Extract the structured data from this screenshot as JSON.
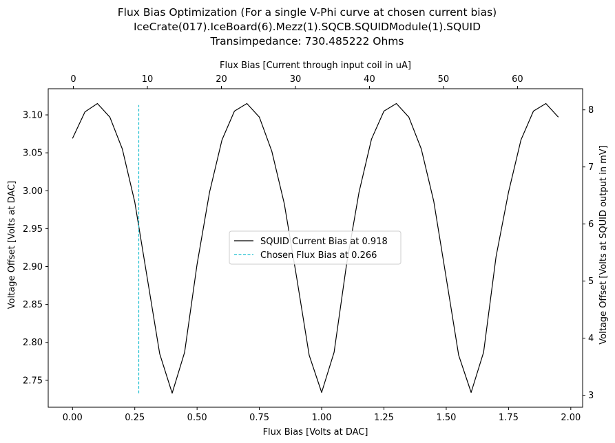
{
  "chart_data": {
    "type": "line",
    "title_lines": [
      "Flux Bias Optimization (For a single V-Phi curve at chosen current bias)",
      "IceCrate(017).IceBoard(6).Mezz(1).SQCB.SQUIDModule(1).SQUID",
      "Transimpedance: 730.485222 Ohms"
    ],
    "xlabel_bottom": "Flux Bias [Volts at DAC]",
    "xlabel_top": "Flux Bias [Current through input coil in uA]",
    "ylabel_left": "Voltage Offset [Volts at DAC]",
    "ylabel_right": "Voltage Offset [Volts at SQUID output in mV]",
    "xlim": [
      -0.0975,
      2.0475
    ],
    "ylim": [
      2.7145,
      3.1345
    ],
    "xlim_top": [
      -3.4,
      68.8
    ],
    "ylim_right": [
      2.79,
      8.37
    ],
    "xticks_bottom": [
      0.0,
      0.25,
      0.5,
      0.75,
      1.0,
      1.25,
      1.5,
      1.75,
      2.0
    ],
    "xticklabels_bottom": [
      "0.00",
      "0.25",
      "0.50",
      "0.75",
      "1.00",
      "1.25",
      "1.50",
      "1.75",
      "2.00"
    ],
    "xticks_top": [
      0,
      10,
      20,
      30,
      40,
      50,
      60
    ],
    "xticklabels_top": [
      "0",
      "10",
      "20",
      "30",
      "40",
      "50",
      "60"
    ],
    "yticks_left": [
      2.75,
      2.8,
      2.85,
      2.9,
      2.95,
      3.0,
      3.05,
      3.1
    ],
    "yticklabels_left": [
      "2.75",
      "2.80",
      "2.85",
      "2.90",
      "2.95",
      "3.00",
      "3.05",
      "3.10"
    ],
    "yticks_right": [
      3,
      4,
      5,
      6,
      7,
      8
    ],
    "yticklabels_right": [
      "3",
      "4",
      "5",
      "6",
      "7",
      "8"
    ],
    "series": [
      {
        "name": "SQUID Current Bias at 0.918",
        "color": "#000000",
        "style": "solid",
        "x": [
          0.0,
          0.05,
          0.1,
          0.15,
          0.2,
          0.25,
          0.3,
          0.35,
          0.4,
          0.45,
          0.5,
          0.55,
          0.6,
          0.65,
          0.7,
          0.75,
          0.8,
          0.85,
          0.9,
          0.95,
          1.0,
          1.05,
          1.1,
          1.15,
          1.2,
          1.25,
          1.3,
          1.35,
          1.4,
          1.45,
          1.5,
          1.55,
          1.6,
          1.65,
          1.7,
          1.75,
          1.8,
          1.85,
          1.9,
          1.95
        ],
        "y": [
          3.069,
          3.104,
          3.115,
          3.097,
          3.055,
          2.985,
          2.885,
          2.785,
          2.733,
          2.787,
          2.903,
          2.998,
          3.067,
          3.105,
          3.115,
          3.097,
          3.052,
          2.983,
          2.885,
          2.783,
          2.734,
          2.787,
          2.903,
          2.998,
          3.068,
          3.105,
          3.115,
          3.097,
          3.055,
          2.986,
          2.885,
          2.783,
          2.734,
          2.787,
          2.913,
          2.998,
          3.067,
          3.105,
          3.115,
          3.097
        ]
      },
      {
        "name": "Chosen Flux Bias at 0.266",
        "color": "#17becf",
        "style": "dashed",
        "x": [
          0.266,
          0.266
        ],
        "y": [
          2.733,
          3.113
        ]
      }
    ],
    "legend_location": "center"
  }
}
